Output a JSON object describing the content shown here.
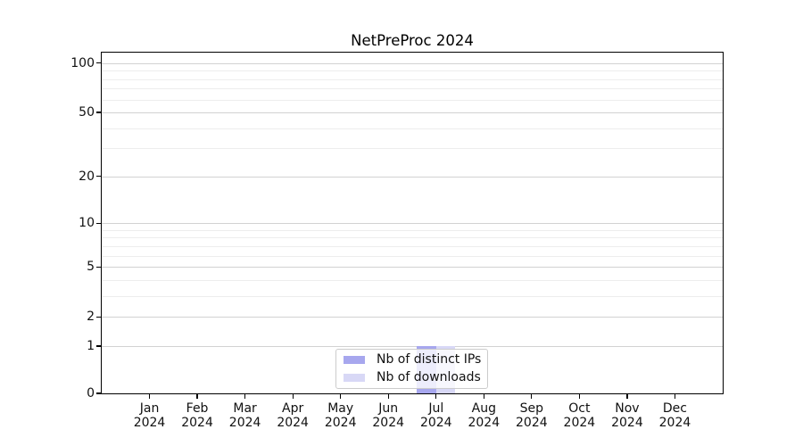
{
  "chart_data": {
    "type": "bar",
    "title": "NetPreProc 2024",
    "categories": [
      {
        "month": "Jan",
        "year": "2024"
      },
      {
        "month": "Feb",
        "year": "2024"
      },
      {
        "month": "Mar",
        "year": "2024"
      },
      {
        "month": "Apr",
        "year": "2024"
      },
      {
        "month": "May",
        "year": "2024"
      },
      {
        "month": "Jun",
        "year": "2024"
      },
      {
        "month": "Jul",
        "year": "2024"
      },
      {
        "month": "Aug",
        "year": "2024"
      },
      {
        "month": "Sep",
        "year": "2024"
      },
      {
        "month": "Oct",
        "year": "2024"
      },
      {
        "month": "Nov",
        "year": "2024"
      },
      {
        "month": "Dec",
        "year": "2024"
      }
    ],
    "series": [
      {
        "name": "Nb of distinct IPs",
        "color": "#a7a7ee",
        "values": [
          0,
          0,
          0,
          0,
          0,
          0,
          1,
          0,
          0,
          0,
          0,
          0
        ]
      },
      {
        "name": "Nb of downloads",
        "color": "#d8d8f6",
        "values": [
          0,
          0,
          0,
          0,
          0,
          0,
          1,
          0,
          0,
          0,
          0,
          0
        ]
      }
    ],
    "yticks": [
      100,
      50,
      20,
      10,
      5,
      2,
      1,
      0
    ],
    "ylim": [
      0,
      115
    ],
    "yscale": "log1p",
    "xlabel": "",
    "ylabel": "",
    "grid": "horizontal-major-and-minor",
    "legend_position": "lower-center"
  }
}
